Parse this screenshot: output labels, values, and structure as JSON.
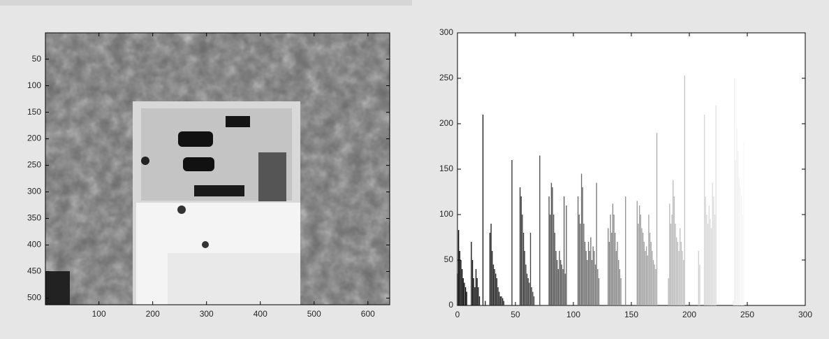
{
  "chart_data": [
    {
      "type": "image",
      "xlim": [
        0.5,
        640.5
      ],
      "ylim": [
        0.5,
        512.5
      ],
      "y_direction": "reverse",
      "xticks": [
        100,
        200,
        300,
        400,
        500,
        600
      ],
      "yticks": [
        50,
        100,
        150,
        200,
        250,
        300,
        350,
        400,
        450,
        500
      ]
    },
    {
      "type": "bar",
      "colormap": "gray",
      "xlim": [
        0,
        300
      ],
      "ylim": [
        0,
        300
      ],
      "xticks": [
        0,
        50,
        100,
        150,
        200,
        250,
        300
      ],
      "yticks": [
        0,
        50,
        100,
        150,
        200,
        250,
        300
      ],
      "x": [
        0,
        1,
        2,
        3,
        4,
        5,
        6,
        7,
        8,
        9,
        10,
        11,
        12,
        13,
        14,
        15,
        16,
        17,
        18,
        19,
        20,
        21,
        22,
        23,
        24,
        25,
        26,
        27,
        28,
        29,
        30,
        31,
        32,
        33,
        34,
        35,
        36,
        37,
        38,
        39,
        40,
        41,
        42,
        43,
        44,
        45,
        46,
        47,
        48,
        49,
        50,
        51,
        52,
        53,
        54,
        55,
        56,
        57,
        58,
        59,
        60,
        61,
        62,
        63,
        64,
        65,
        66,
        67,
        68,
        69,
        70,
        71,
        72,
        73,
        74,
        75,
        76,
        77,
        78,
        79,
        80,
        81,
        82,
        83,
        84,
        85,
        86,
        87,
        88,
        89,
        90,
        91,
        92,
        93,
        94,
        95,
        96,
        97,
        98,
        99,
        100,
        101,
        102,
        103,
        104,
        105,
        106,
        107,
        108,
        109,
        110,
        111,
        112,
        113,
        114,
        115,
        116,
        117,
        118,
        119,
        120,
        121,
        122,
        123,
        124,
        125,
        126,
        127,
        128,
        129,
        130,
        131,
        132,
        133,
        134,
        135,
        136,
        137,
        138,
        139,
        140,
        141,
        142,
        143,
        144,
        145,
        146,
        147,
        148,
        149,
        150,
        151,
        152,
        153,
        154,
        155,
        156,
        157,
        158,
        159,
        160,
        161,
        162,
        163,
        164,
        165,
        166,
        167,
        168,
        169,
        170,
        171,
        172,
        173,
        174,
        175,
        176,
        177,
        178,
        179,
        180,
        181,
        182,
        183,
        184,
        185,
        186,
        187,
        188,
        189,
        190,
        191,
        192,
        193,
        194,
        195,
        196,
        197,
        198,
        199,
        200,
        201,
        202,
        203,
        204,
        205,
        206,
        207,
        208,
        209,
        210,
        211,
        212,
        213,
        214,
        215,
        216,
        217,
        218,
        219,
        220,
        221,
        222,
        223,
        224,
        225,
        226,
        227,
        228,
        229,
        230,
        231,
        232,
        233,
        234,
        235,
        236,
        237,
        238,
        239,
        240,
        241,
        242,
        243,
        244,
        245,
        246,
        247,
        248,
        249,
        250,
        251,
        252,
        253,
        254,
        255
      ],
      "values": [
        35,
        83,
        60,
        50,
        40,
        30,
        25,
        20,
        15,
        0,
        0,
        0,
        70,
        50,
        30,
        20,
        40,
        30,
        20,
        10,
        0,
        0,
        210,
        0,
        5,
        0,
        0,
        0,
        80,
        90,
        60,
        45,
        40,
        35,
        30,
        20,
        15,
        10,
        10,
        8,
        5,
        0,
        0,
        0,
        0,
        0,
        0,
        160,
        0,
        0,
        0,
        0,
        0,
        0,
        130,
        120,
        100,
        80,
        60,
        45,
        35,
        30,
        25,
        80,
        20,
        15,
        10,
        0,
        0,
        0,
        0,
        165,
        0,
        0,
        0,
        0,
        0,
        0,
        0,
        120,
        100,
        135,
        130,
        100,
        80,
        60,
        50,
        40,
        60,
        50,
        45,
        40,
        120,
        35,
        110,
        0,
        0,
        0,
        0,
        0,
        0,
        0,
        0,
        0,
        120,
        100,
        90,
        145,
        130,
        90,
        70,
        60,
        50,
        70,
        60,
        75,
        50,
        65,
        60,
        45,
        135,
        40,
        30,
        0,
        0,
        0,
        0,
        0,
        0,
        0,
        85,
        70,
        100,
        80,
        112,
        100,
        80,
        60,
        70,
        50,
        40,
        30,
        0,
        0,
        0,
        120,
        0,
        0,
        0,
        0,
        0,
        0,
        0,
        0,
        0,
        115,
        90,
        110,
        100,
        85,
        80,
        70,
        60,
        65,
        55,
        100,
        80,
        70,
        60,
        50,
        45,
        40,
        190,
        0,
        0,
        0,
        0,
        0,
        0,
        0,
        0,
        0,
        30,
        112,
        90,
        100,
        138,
        120,
        90,
        75,
        70,
        60,
        85,
        70,
        60,
        50,
        253,
        0,
        0,
        0,
        0,
        0,
        0,
        0,
        0,
        0,
        0,
        0,
        60,
        45,
        0,
        0,
        0,
        210,
        120,
        100,
        90,
        110,
        95,
        85,
        135,
        120,
        100,
        220,
        0,
        0,
        0,
        0,
        0,
        0,
        0,
        0,
        0,
        0,
        0,
        0,
        0,
        0,
        5,
        250,
        160,
        195,
        170,
        140,
        130,
        120,
        100,
        180,
        0,
        0,
        0,
        0,
        0,
        0,
        0,
        0
      ]
    }
  ]
}
